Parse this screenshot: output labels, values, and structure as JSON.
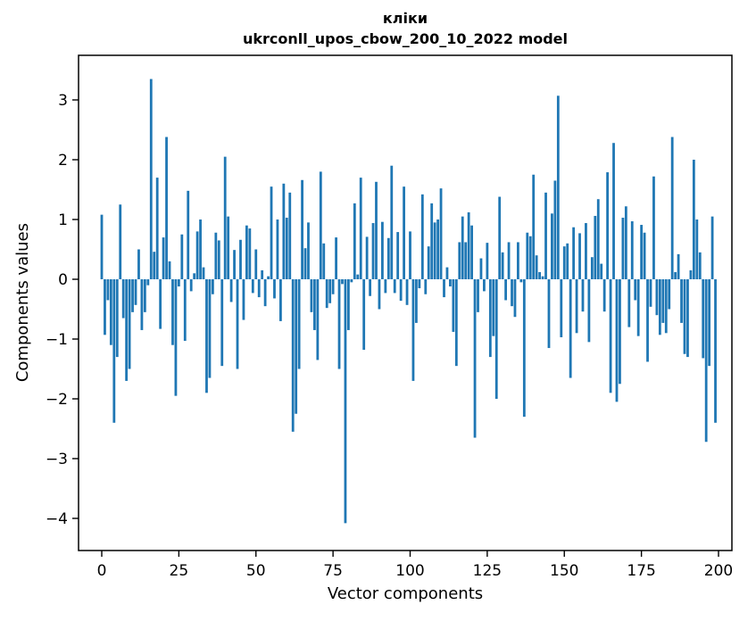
{
  "figure": {
    "title": "кліки",
    "subtitle": "ukrconll_upos_cbow_200_10_2022 model"
  },
  "chart_data": {
    "type": "bar",
    "title": "кліки",
    "subtitle": "ukrconll_upos_cbow_200_10_2022 model",
    "xlabel": "Vector components",
    "ylabel": "Components values",
    "bar_color": "#1f77b4",
    "n_components": 200,
    "grid": false,
    "legend": null,
    "xticks": [
      0,
      25,
      50,
      75,
      100,
      125,
      150,
      175,
      200
    ],
    "yticks": [
      3,
      2,
      1,
      0,
      -1,
      -2,
      -3,
      -4
    ],
    "ylim": [
      -4.54,
      3.75
    ],
    "xlim": [
      -7.5,
      204.5
    ],
    "values": [
      1.08,
      -0.93,
      -0.35,
      -1.1,
      -2.4,
      -1.3,
      1.25,
      -0.65,
      -1.7,
      -1.5,
      -0.55,
      -0.43,
      0.5,
      -0.85,
      -0.55,
      -0.1,
      3.35,
      0.46,
      1.7,
      -0.83,
      0.7,
      2.38,
      0.3,
      -1.1,
      -1.95,
      -0.12,
      0.75,
      -1.03,
      1.48,
      -0.2,
      0.1,
      0.8,
      1.0,
      0.2,
      -1.9,
      -1.65,
      -0.25,
      0.78,
      0.65,
      -1.45,
      2.05,
      1.05,
      -0.38,
      0.49,
      -1.5,
      0.66,
      -0.68,
      0.9,
      0.85,
      -0.23,
      0.5,
      -0.3,
      0.15,
      -0.45,
      0.05,
      1.55,
      -0.32,
      1.0,
      -0.7,
      1.6,
      1.03,
      1.45,
      -2.55,
      -2.25,
      -1.5,
      1.66,
      0.52,
      0.95,
      -0.55,
      -0.85,
      -1.35,
      1.8,
      0.6,
      -0.48,
      -0.4,
      -0.25,
      0.7,
      -1.5,
      -0.08,
      -4.08,
      -0.85,
      -0.05,
      1.27,
      0.08,
      1.7,
      -1.18,
      0.71,
      -0.28,
      0.94,
      1.63,
      -0.5,
      0.96,
      -0.23,
      0.69,
      1.9,
      -0.23,
      0.79,
      -0.36,
      1.55,
      -0.43,
      0.8,
      -1.7,
      -0.73,
      -0.15,
      1.42,
      -0.25,
      0.55,
      1.27,
      0.95,
      1.0,
      1.52,
      -0.3,
      0.2,
      -0.12,
      -0.88,
      -1.45,
      0.62,
      1.05,
      0.62,
      1.12,
      0.9,
      -2.65,
      -0.55,
      0.35,
      -0.2,
      0.61,
      -1.3,
      -0.95,
      -2.0,
      1.38,
      0.45,
      -0.35,
      0.62,
      -0.45,
      -0.63,
      0.62,
      -0.05,
      -2.3,
      0.78,
      0.72,
      1.75,
      0.4,
      0.12,
      0.05,
      1.45,
      -1.15,
      1.1,
      1.65,
      3.07,
      -0.97,
      0.55,
      0.6,
      -1.65,
      0.87,
      -0.9,
      0.77,
      -0.54,
      0.94,
      -1.05,
      0.37,
      1.06,
      1.34,
      0.26,
      -0.54,
      1.79,
      -1.9,
      2.28,
      -2.05,
      -1.75,
      1.03,
      1.22,
      -0.8,
      0.97,
      -0.35,
      -0.95,
      0.91,
      0.78,
      -1.38,
      -0.46,
      1.72,
      -0.6,
      -0.93,
      -0.73,
      -0.9,
      -0.5,
      2.38,
      0.12,
      0.42,
      -0.73,
      -1.25,
      -1.3,
      0.15,
      2.0,
      1.0,
      0.45,
      -1.32,
      -2.72,
      -1.45,
      1.05,
      -2.4
    ]
  }
}
